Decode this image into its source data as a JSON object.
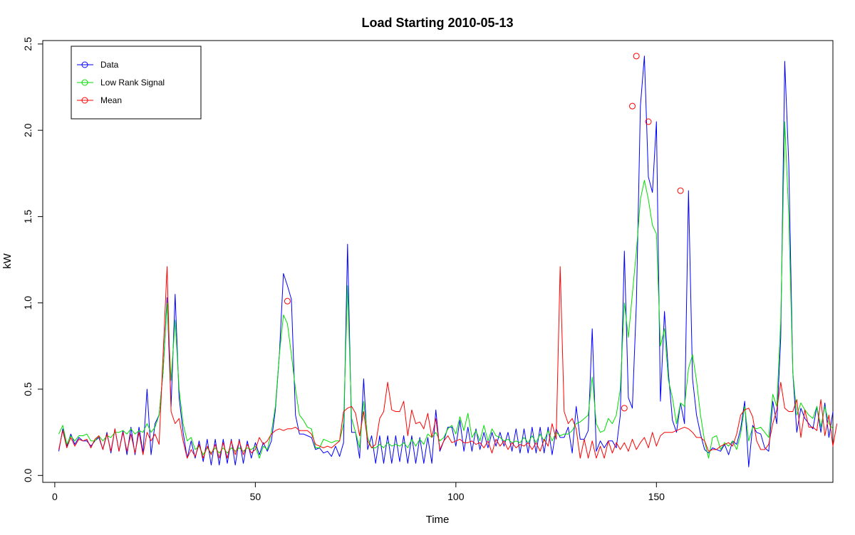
{
  "chart_data": {
    "type": "line",
    "title": "Load Starting 2010-05-13",
    "xlabel": "Time",
    "ylabel": "kW",
    "xlim": [
      -3,
      194
    ],
    "ylim": [
      -0.04,
      2.52
    ],
    "xticks": [
      0,
      50,
      100,
      150
    ],
    "yticks": [
      0.0,
      0.5,
      1.0,
      1.5,
      2.0,
      2.5
    ],
    "xtick_labels": [
      "0",
      "50",
      "100",
      "150"
    ],
    "ytick_labels": [
      "0.0",
      "0.5",
      "1.0",
      "1.5",
      "2.0",
      "2.5"
    ],
    "grid": false,
    "legend_position": "top-left",
    "series": [
      {
        "name": "Data",
        "color": "#0000ff",
        "values": [
          0.14,
          0.27,
          0.17,
          0.24,
          0.18,
          0.22,
          0.2,
          0.2,
          0.17,
          0.2,
          0.22,
          0.15,
          0.25,
          0.13,
          0.27,
          0.14,
          0.26,
          0.12,
          0.28,
          0.12,
          0.28,
          0.13,
          0.5,
          0.12,
          0.3,
          0.35,
          0.6,
          1.03,
          0.4,
          1.05,
          0.45,
          0.25,
          0.1,
          0.2,
          0.1,
          0.2,
          0.08,
          0.21,
          0.06,
          0.21,
          0.06,
          0.21,
          0.07,
          0.21,
          0.06,
          0.21,
          0.07,
          0.2,
          0.1,
          0.19,
          0.12,
          0.19,
          0.14,
          0.2,
          0.38,
          0.7,
          1.17,
          1.1,
          1.02,
          0.35,
          0.24,
          0.24,
          0.23,
          0.22,
          0.15,
          0.16,
          0.13,
          0.14,
          0.11,
          0.17,
          0.11,
          0.19,
          1.34,
          0.25,
          0.25,
          0.1,
          0.56,
          0.15,
          0.23,
          0.07,
          0.23,
          0.07,
          0.23,
          0.07,
          0.23,
          0.08,
          0.23,
          0.07,
          0.23,
          0.07,
          0.22,
          0.07,
          0.22,
          0.07,
          0.38,
          0.14,
          0.2,
          0.28,
          0.28,
          0.17,
          0.32,
          0.14,
          0.28,
          0.14,
          0.27,
          0.15,
          0.25,
          0.16,
          0.25,
          0.17,
          0.25,
          0.17,
          0.25,
          0.14,
          0.27,
          0.13,
          0.27,
          0.13,
          0.28,
          0.13,
          0.28,
          0.13,
          0.28,
          0.12,
          0.27,
          0.22,
          0.22,
          0.28,
          0.13,
          0.4,
          0.21,
          0.21,
          0.26,
          0.85,
          0.14,
          0.2,
          0.16,
          0.2,
          0.2,
          0.16,
          0.35,
          1.3,
          0.45,
          0.39,
          1.0,
          2.14,
          2.43,
          1.73,
          1.64,
          2.05,
          0.43,
          0.95,
          0.59,
          0.32,
          0.25,
          0.42,
          0.3,
          1.65,
          0.56,
          0.35,
          0.24,
          0.15,
          0.13,
          0.16,
          0.15,
          0.14,
          0.18,
          0.12,
          0.2,
          0.18,
          0.27,
          0.43,
          0.05,
          0.29,
          0.25,
          0.24,
          0.16,
          0.14,
          0.43,
          0.3,
          0.8,
          2.4,
          1.8,
          0.6,
          0.25,
          0.39,
          0.33,
          0.3,
          0.27,
          0.4,
          0.25,
          0.42,
          0.22,
          0.37
        ]
      },
      {
        "name": "Low Rank Signal",
        "color": "#00dd00",
        "values": [
          0.24,
          0.29,
          0.18,
          0.23,
          0.2,
          0.23,
          0.23,
          0.24,
          0.2,
          0.2,
          0.23,
          0.2,
          0.23,
          0.22,
          0.25,
          0.25,
          0.26,
          0.24,
          0.27,
          0.24,
          0.26,
          0.25,
          0.3,
          0.25,
          0.28,
          0.35,
          0.6,
          1.0,
          0.55,
          0.9,
          0.5,
          0.3,
          0.2,
          0.22,
          0.15,
          0.17,
          0.12,
          0.16,
          0.13,
          0.16,
          0.13,
          0.16,
          0.13,
          0.16,
          0.14,
          0.16,
          0.14,
          0.16,
          0.15,
          0.17,
          0.1,
          0.17,
          0.15,
          0.25,
          0.4,
          0.7,
          0.93,
          0.88,
          0.7,
          0.5,
          0.35,
          0.32,
          0.28,
          0.27,
          0.16,
          0.16,
          0.21,
          0.2,
          0.19,
          0.2,
          0.2,
          0.3,
          1.1,
          0.33,
          0.25,
          0.16,
          0.43,
          0.22,
          0.16,
          0.16,
          0.18,
          0.16,
          0.19,
          0.17,
          0.18,
          0.17,
          0.19,
          0.16,
          0.21,
          0.17,
          0.21,
          0.18,
          0.24,
          0.22,
          0.25,
          0.2,
          0.22,
          0.27,
          0.29,
          0.24,
          0.34,
          0.26,
          0.36,
          0.22,
          0.26,
          0.2,
          0.29,
          0.2,
          0.27,
          0.23,
          0.22,
          0.2,
          0.21,
          0.19,
          0.2,
          0.19,
          0.22,
          0.19,
          0.23,
          0.19,
          0.24,
          0.2,
          0.26,
          0.2,
          0.25,
          0.23,
          0.24,
          0.24,
          0.26,
          0.3,
          0.31,
          0.33,
          0.35,
          0.57,
          0.3,
          0.25,
          0.26,
          0.33,
          0.3,
          0.35,
          0.5,
          1.0,
          0.8,
          1.05,
          1.3,
          1.6,
          1.71,
          1.6,
          1.45,
          1.4,
          0.75,
          0.85,
          0.55,
          0.45,
          0.3,
          0.42,
          0.4,
          0.62,
          0.7,
          0.55,
          0.35,
          0.2,
          0.1,
          0.22,
          0.23,
          0.15,
          0.19,
          0.17,
          0.2,
          0.15,
          0.24,
          0.4,
          0.2,
          0.28,
          0.27,
          0.28,
          0.25,
          0.22,
          0.47,
          0.4,
          0.9,
          2.05,
          1.5,
          0.6,
          0.35,
          0.42,
          0.38,
          0.35,
          0.33,
          0.4,
          0.28,
          0.4,
          0.3,
          0.27
        ]
      },
      {
        "name": "Mean",
        "color": "#ff0000",
        "values": [
          0.15,
          0.26,
          0.16,
          0.22,
          0.17,
          0.21,
          0.2,
          0.21,
          0.16,
          0.21,
          0.23,
          0.15,
          0.24,
          0.14,
          0.27,
          0.14,
          0.25,
          0.14,
          0.24,
          0.13,
          0.25,
          0.12,
          0.25,
          0.2,
          0.24,
          0.18,
          0.7,
          1.21,
          0.37,
          0.3,
          0.33,
          0.2,
          0.1,
          0.15,
          0.11,
          0.18,
          0.1,
          0.17,
          0.12,
          0.18,
          0.1,
          0.19,
          0.1,
          0.2,
          0.12,
          0.2,
          0.12,
          0.18,
          0.13,
          0.15,
          0.22,
          0.18,
          0.2,
          0.24,
          0.26,
          0.27,
          0.26,
          0.27,
          0.27,
          0.28,
          0.26,
          0.26,
          0.26,
          0.24,
          0.18,
          0.17,
          0.16,
          0.17,
          0.16,
          0.18,
          0.2,
          0.37,
          0.39,
          0.4,
          0.36,
          0.23,
          0.37,
          0.2,
          0.16,
          0.18,
          0.33,
          0.37,
          0.54,
          0.38,
          0.37,
          0.37,
          0.43,
          0.23,
          0.38,
          0.3,
          0.31,
          0.27,
          0.36,
          0.22,
          0.33,
          0.15,
          0.2,
          0.23,
          0.19,
          0.2,
          0.21,
          0.19,
          0.19,
          0.2,
          0.18,
          0.19,
          0.16,
          0.2,
          0.13,
          0.21,
          0.17,
          0.2,
          0.15,
          0.19,
          0.16,
          0.18,
          0.17,
          0.19,
          0.15,
          0.19,
          0.14,
          0.21,
          0.17,
          0.3,
          0.21,
          1.21,
          0.37,
          0.3,
          0.33,
          0.27,
          0.1,
          0.21,
          0.1,
          0.2,
          0.1,
          0.17,
          0.1,
          0.2,
          0.13,
          0.19,
          0.15,
          0.19,
          0.14,
          0.21,
          0.15,
          0.19,
          0.22,
          0.16,
          0.25,
          0.17,
          0.23,
          0.25,
          0.25,
          0.25,
          0.26,
          0.27,
          0.28,
          0.27,
          0.25,
          0.22,
          0.22,
          0.2,
          0.14,
          0.15,
          0.15,
          0.17,
          0.18,
          0.19,
          0.17,
          0.24,
          0.35,
          0.38,
          0.39,
          0.34,
          0.2,
          0.15,
          0.15,
          0.18,
          0.3,
          0.38,
          0.54,
          0.39,
          0.37,
          0.37,
          0.44,
          0.22,
          0.38,
          0.28,
          0.28,
          0.26,
          0.44,
          0.23,
          0.35,
          0.17,
          0.3
        ]
      }
    ],
    "highlights": {
      "name": "Mean",
      "points": [
        {
          "x": 58,
          "y": 1.01
        },
        {
          "x": 142,
          "y": 0.39
        },
        {
          "x": 144,
          "y": 2.14
        },
        {
          "x": 145,
          "y": 2.43
        },
        {
          "x": 148,
          "y": 2.05
        },
        {
          "x": 156,
          "y": 1.65
        }
      ]
    }
  }
}
